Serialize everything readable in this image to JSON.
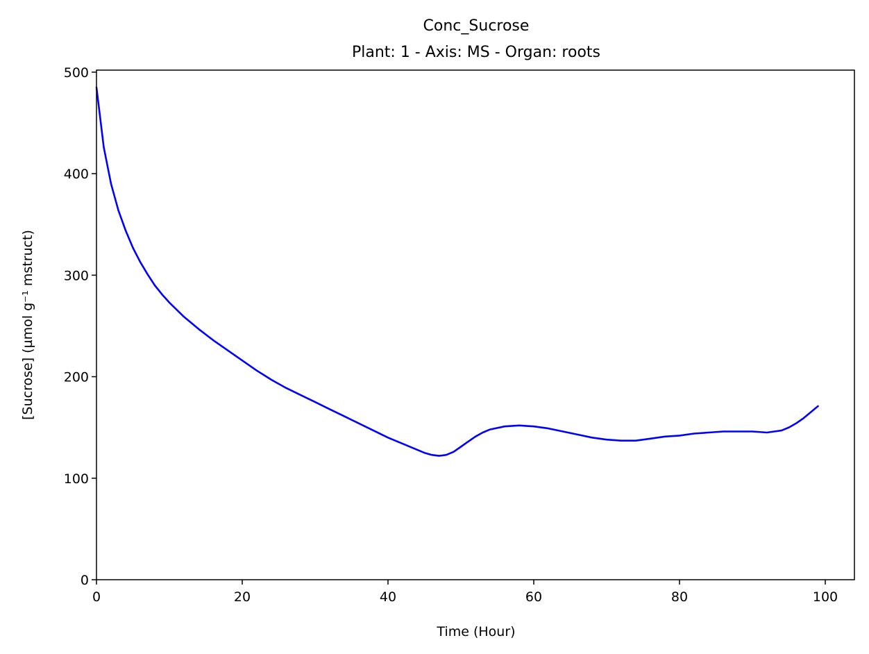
{
  "chart_data": {
    "type": "line",
    "title": "Conc_Sucrose",
    "subtitle": "Plant: 1 - Axis: MS - Organ: roots",
    "xlabel": "Time (Hour)",
    "ylabel": "[Sucrose] (µmol g⁻¹ mstruct)",
    "xlim": [
      0,
      104
    ],
    "ylim": [
      0,
      502
    ],
    "xticks": [
      0,
      20,
      40,
      60,
      80,
      100
    ],
    "yticks": [
      0,
      100,
      200,
      300,
      400,
      500
    ],
    "grid": false,
    "line_color": "#0000ff",
    "series": [
      {
        "x": [
          0,
          1,
          2,
          3,
          4,
          5,
          6,
          7,
          8,
          9,
          10,
          12,
          14,
          16,
          18,
          20,
          22,
          24,
          26,
          28,
          30,
          32,
          34,
          36,
          38,
          40,
          42,
          44,
          45,
          46,
          47,
          48,
          49,
          50,
          51,
          52,
          53,
          54,
          56,
          58,
          60,
          62,
          64,
          66,
          68,
          70,
          72,
          74,
          76,
          78,
          80,
          82,
          84,
          86,
          88,
          90,
          92,
          93,
          94,
          95,
          96,
          97,
          98,
          99
        ],
        "y": [
          485,
          426,
          390,
          364,
          344,
          327,
          313,
          301,
          290,
          281,
          273,
          259,
          247,
          236,
          226,
          216,
          206,
          197,
          189,
          182,
          175,
          168,
          161,
          154,
          147,
          140,
          134,
          128,
          125,
          123,
          122,
          123,
          126,
          131,
          136,
          141,
          145,
          148,
          151,
          152,
          151,
          149,
          146,
          143,
          140,
          138,
          137,
          137,
          139,
          141,
          142,
          144,
          145,
          146,
          146,
          146,
          145,
          146,
          147,
          150,
          154,
          159,
          165,
          171
        ]
      }
    ]
  }
}
